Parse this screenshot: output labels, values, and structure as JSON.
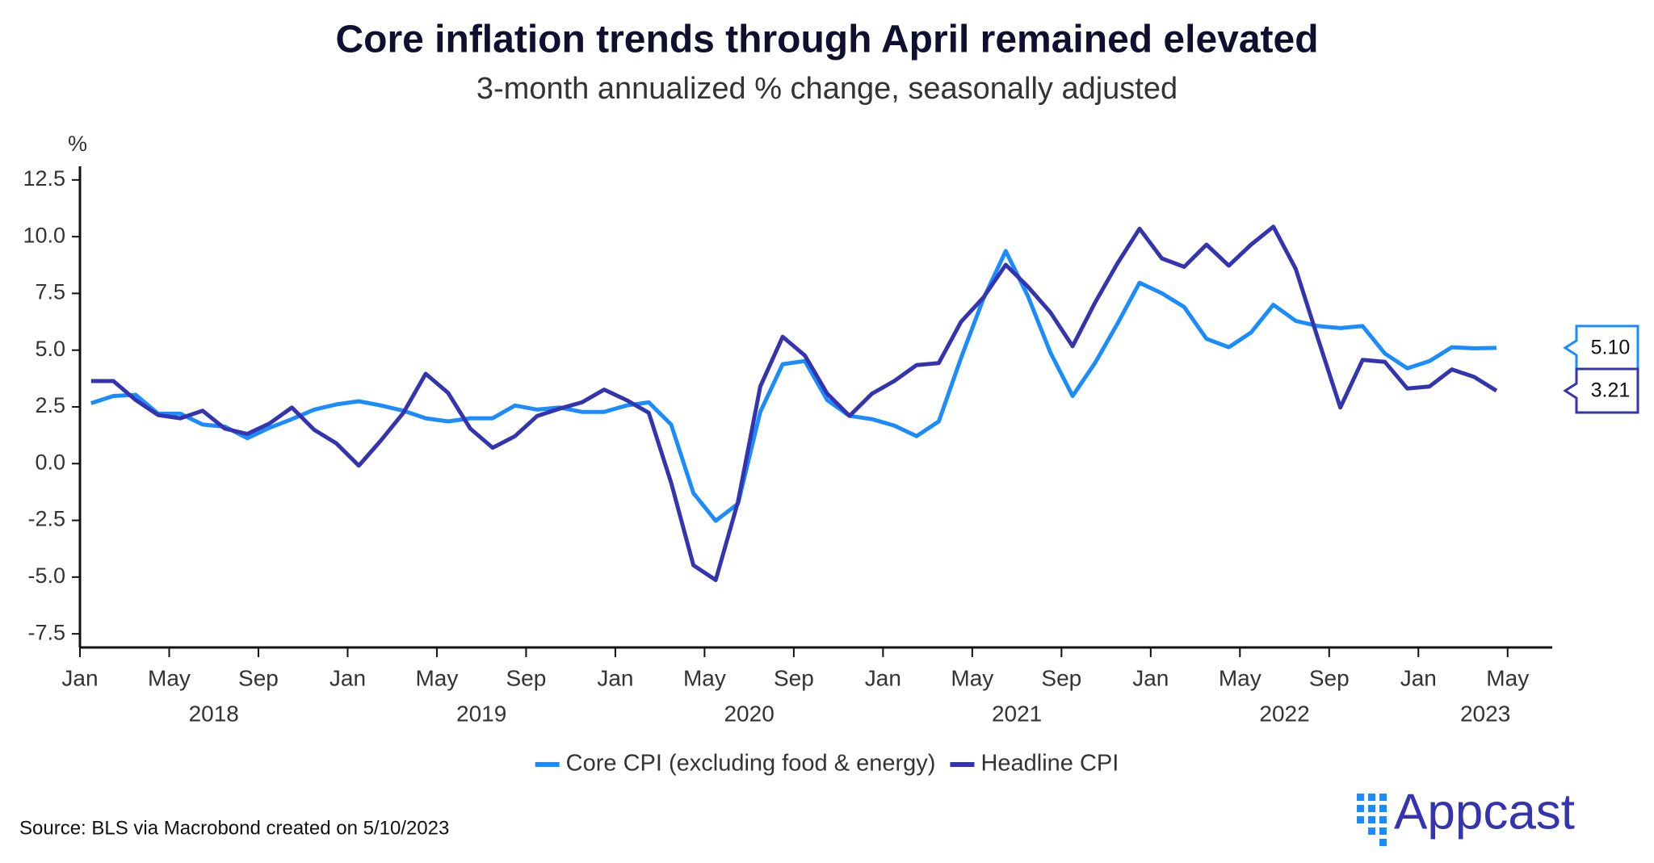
{
  "chart_data": {
    "type": "line",
    "title": "Core inflation trends through April remained elevated",
    "subtitle": "3-month annualized % change, seasonally adjusted",
    "y_label": "%",
    "source": "Source: BLS via Macrobond created on 5/10/2023",
    "brand": "Appcast",
    "x": [
      "2018-01",
      "2018-02",
      "2018-03",
      "2018-04",
      "2018-05",
      "2018-06",
      "2018-07",
      "2018-08",
      "2018-09",
      "2018-10",
      "2018-11",
      "2018-12",
      "2019-01",
      "2019-02",
      "2019-03",
      "2019-04",
      "2019-05",
      "2019-06",
      "2019-07",
      "2019-08",
      "2019-09",
      "2019-10",
      "2019-11",
      "2019-12",
      "2020-01",
      "2020-02",
      "2020-03",
      "2020-04",
      "2020-05",
      "2020-06",
      "2020-07",
      "2020-08",
      "2020-09",
      "2020-10",
      "2020-11",
      "2020-12",
      "2021-01",
      "2021-02",
      "2021-03",
      "2021-04",
      "2021-05",
      "2021-06",
      "2021-07",
      "2021-08",
      "2021-09",
      "2021-10",
      "2021-11",
      "2021-12",
      "2022-01",
      "2022-02",
      "2022-03",
      "2022-04",
      "2022-05",
      "2022-06",
      "2022-07",
      "2022-08",
      "2022-09",
      "2022-10",
      "2022-11",
      "2022-12",
      "2023-01",
      "2023-02",
      "2023-03",
      "2023-04"
    ],
    "series": [
      {
        "name": "Core CPI (excluding food & energy)",
        "color": "#1a8cff",
        "values": [
          2.66,
          2.98,
          3.03,
          2.2,
          2.2,
          1.72,
          1.63,
          1.12,
          1.58,
          1.96,
          2.38,
          2.61,
          2.75,
          2.56,
          2.33,
          2.0,
          1.86,
          2.0,
          2.0,
          2.56,
          2.38,
          2.47,
          2.28,
          2.28,
          2.56,
          2.7,
          1.72,
          -1.3,
          -2.52,
          -1.77,
          2.28,
          4.38,
          4.52,
          2.8,
          2.1,
          1.96,
          1.68,
          1.21,
          1.86,
          4.66,
          7.27,
          9.37,
          7.37,
          4.9,
          2.98,
          4.43,
          6.15,
          7.97,
          7.51,
          6.9,
          5.5,
          5.13,
          5.78,
          7.0,
          6.29,
          6.06,
          5.97,
          6.06,
          4.85,
          4.2,
          4.52,
          5.13,
          5.08,
          5.1
        ],
        "value_labels": [
          null,
          null,
          null,
          null,
          null,
          null,
          null,
          null,
          null,
          null,
          null,
          null,
          null,
          null,
          null,
          null,
          null,
          null,
          null,
          null,
          null,
          null,
          null,
          null,
          null,
          null,
          null,
          null,
          null,
          null,
          null,
          null,
          null,
          null,
          null,
          null,
          null,
          null,
          null,
          null,
          null,
          null,
          null,
          null,
          null,
          null,
          null,
          null,
          null,
          null,
          null,
          null,
          null,
          null,
          null,
          null,
          null,
          null,
          null,
          null,
          null,
          null,
          null,
          "5.10"
        ]
      },
      {
        "name": "Headline CPI",
        "color": "#3434b0",
        "values": [
          3.64,
          3.64,
          2.8,
          2.14,
          2.0,
          2.33,
          1.54,
          1.31,
          1.77,
          2.47,
          1.49,
          0.89,
          -0.09,
          1.03,
          2.24,
          3.96,
          3.12,
          1.54,
          0.7,
          1.21,
          2.1,
          2.42,
          2.7,
          3.26,
          2.8,
          2.24,
          -0.84,
          -4.48,
          -5.13,
          -1.68,
          3.4,
          5.59,
          4.76,
          3.08,
          2.1,
          3.08,
          3.64,
          4.34,
          4.43,
          6.25,
          7.32,
          8.76,
          7.79,
          6.67,
          5.17,
          7.09,
          8.81,
          10.35,
          9.04,
          8.67,
          9.65,
          8.72,
          9.65,
          10.44,
          8.58,
          5.5,
          2.47,
          4.57,
          4.48,
          3.31,
          3.4,
          4.15,
          3.82,
          3.21
        ],
        "value_labels": [
          null,
          null,
          null,
          null,
          null,
          null,
          null,
          null,
          null,
          null,
          null,
          null,
          null,
          null,
          null,
          null,
          null,
          null,
          null,
          null,
          null,
          null,
          null,
          null,
          null,
          null,
          null,
          null,
          null,
          null,
          null,
          null,
          null,
          null,
          null,
          null,
          null,
          null,
          null,
          null,
          null,
          null,
          null,
          null,
          null,
          null,
          null,
          null,
          null,
          null,
          null,
          null,
          null,
          null,
          null,
          null,
          null,
          null,
          null,
          null,
          null,
          null,
          null,
          "3.21"
        ]
      }
    ],
    "xlim": [
      "2018-01",
      "2023-07"
    ],
    "xticks": [
      {
        "value": "2018-01",
        "label": "Jan"
      },
      {
        "value": "2018-05",
        "label": "May"
      },
      {
        "value": "2018-09",
        "label": "Sep"
      },
      {
        "value": "2019-01",
        "label": "Jan"
      },
      {
        "value": "2019-05",
        "label": "May"
      },
      {
        "value": "2019-09",
        "label": "Sep"
      },
      {
        "value": "2020-01",
        "label": "Jan"
      },
      {
        "value": "2020-05",
        "label": "May"
      },
      {
        "value": "2020-09",
        "label": "Sep"
      },
      {
        "value": "2021-01",
        "label": "Jan"
      },
      {
        "value": "2021-05",
        "label": "May"
      },
      {
        "value": "2021-09",
        "label": "Sep"
      },
      {
        "value": "2022-01",
        "label": "Jan"
      },
      {
        "value": "2022-05",
        "label": "May"
      },
      {
        "value": "2022-09",
        "label": "Sep"
      },
      {
        "value": "2023-01",
        "label": "Jan"
      },
      {
        "value": "2023-05",
        "label": "May"
      }
    ],
    "x_group_labels": [
      {
        "value": "2018-07",
        "label": "2018"
      },
      {
        "value": "2019-07",
        "label": "2019"
      },
      {
        "value": "2020-07",
        "label": "2020"
      },
      {
        "value": "2021-07",
        "label": "2021"
      },
      {
        "value": "2022-07",
        "label": "2022"
      },
      {
        "value": "2023-04",
        "label": "2023"
      }
    ],
    "ylim": [
      -8.1,
      13.1
    ],
    "yticks": [
      {
        "value": -7.5,
        "label": "-7.5"
      },
      {
        "value": -5,
        "label": "-5.0"
      },
      {
        "value": -2.5,
        "label": "-2.5"
      },
      {
        "value": 0,
        "label": "0.0"
      },
      2.5,
      {
        "value": 5,
        "label": "5.0"
      },
      7.5,
      {
        "value": 10,
        "label": "10.0"
      },
      12.5
    ],
    "grid": false,
    "legend": "bottom"
  }
}
